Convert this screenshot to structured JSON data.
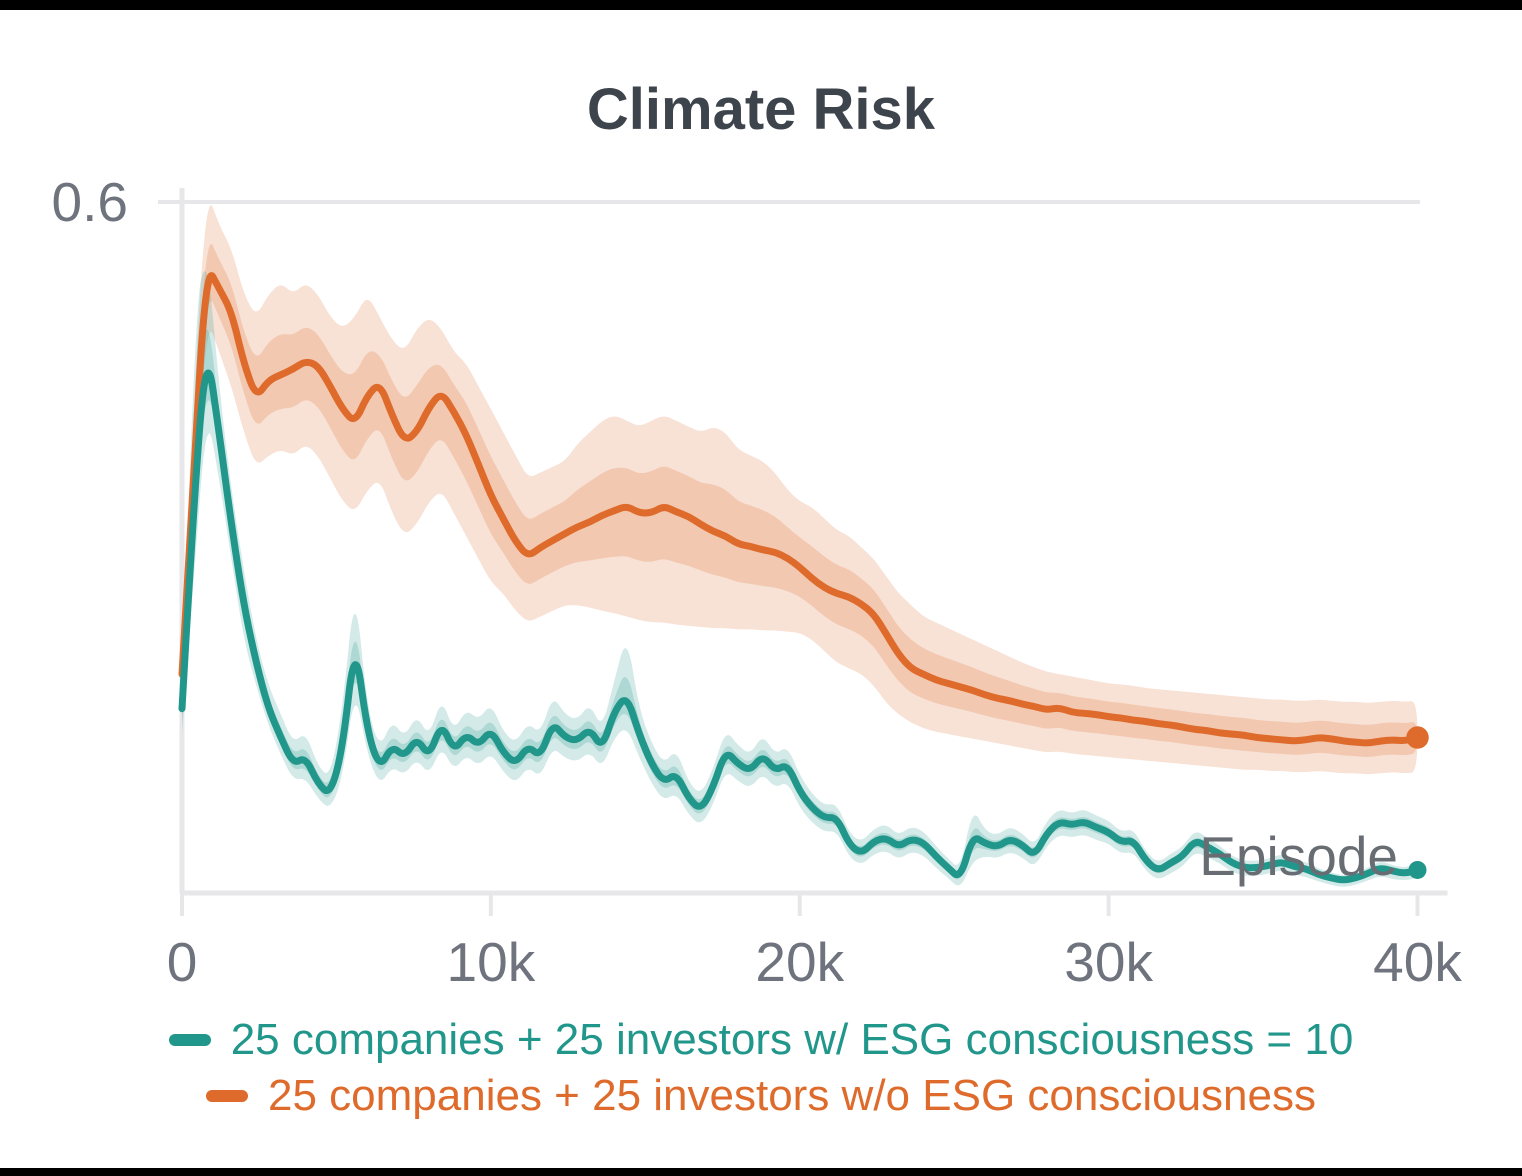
{
  "title": "Climate Risk",
  "axes": {
    "y_tick_label": "0.6",
    "x_axis_label": "Episode"
  },
  "colors": {
    "title_text": "#3d444c",
    "axis_line": "#e7e7e9",
    "tick_text": "#6e737d",
    "episode_text": "#686d74",
    "teal": "#21968a",
    "orange": "#de6b2b",
    "frame_bar": "#000000"
  },
  "legend": {
    "items": [
      {
        "label": "25 companies + 25 investors w/ ESG consciousness = 10",
        "color": "#21968a"
      },
      {
        "label": "25 companies + 25 investors w/o ESG consciousness",
        "color": "#de6b2b"
      }
    ]
  },
  "chart_data": {
    "type": "line",
    "title": "Climate Risk",
    "xlabel": "Episode",
    "ylabel": "",
    "xlim": [
      0,
      40000
    ],
    "ylim": [
      0,
      0.6
    ],
    "y_tick_label": "0.6",
    "y_ticks": [
      0.6
    ],
    "x_ticks": [
      0,
      10000,
      20000,
      30000,
      40000
    ],
    "x_tick_labels": [
      "0",
      "10k",
      "20k",
      "30k",
      "40k"
    ],
    "grid": "top-line-only",
    "legend_position": "bottom",
    "x_thousands": [
      0,
      0.4,
      0.8,
      1.2,
      1.6,
      2,
      2.4,
      2.8,
      3.2,
      3.6,
      4,
      4.4,
      4.8,
      5.2,
      5.6,
      6,
      6.4,
      6.8,
      7.2,
      7.6,
      8,
      8.4,
      8.8,
      9.2,
      9.6,
      10,
      10.4,
      10.8,
      11.2,
      11.6,
      12,
      12.4,
      12.8,
      13.2,
      13.6,
      14,
      14.4,
      14.8,
      15.2,
      15.6,
      16,
      16.4,
      16.8,
      17.2,
      17.6,
      18,
      18.4,
      18.8,
      19.2,
      19.6,
      20,
      20.4,
      20.8,
      21.2,
      21.6,
      22,
      22.4,
      22.8,
      23.2,
      23.6,
      24,
      24.4,
      24.8,
      25.2,
      25.6,
      26,
      26.4,
      26.8,
      27.2,
      27.6,
      28,
      28.4,
      28.8,
      29.2,
      29.6,
      30,
      30.4,
      30.8,
      31.2,
      31.6,
      32,
      32.4,
      32.8,
      33.2,
      33.6,
      34,
      34.4,
      34.8,
      35.2,
      35.6,
      36,
      36.4,
      36.8,
      37.2,
      37.6,
      38,
      38.4,
      38.8,
      39.2,
      39.6,
      40
    ],
    "series": [
      {
        "name": "25 companies + 25 investors w/ ESG consciousness = 10",
        "color": "#21968a",
        "values": [
          0.16,
          0.35,
          0.475,
          0.4,
          0.32,
          0.25,
          0.2,
          0.16,
          0.135,
          0.112,
          0.118,
          0.095,
          0.085,
          0.125,
          0.22,
          0.14,
          0.108,
          0.128,
          0.118,
          0.135,
          0.118,
          0.148,
          0.123,
          0.138,
          0.128,
          0.142,
          0.122,
          0.112,
          0.128,
          0.118,
          0.148,
          0.135,
          0.132,
          0.143,
          0.125,
          0.158,
          0.172,
          0.138,
          0.112,
          0.096,
          0.104,
          0.082,
          0.072,
          0.092,
          0.124,
          0.112,
          0.106,
          0.12,
          0.106,
          0.112,
          0.088,
          0.074,
          0.065,
          0.066,
          0.042,
          0.034,
          0.045,
          0.048,
          0.04,
          0.047,
          0.044,
          0.032,
          0.022,
          0.012,
          0.05,
          0.043,
          0.04,
          0.047,
          0.042,
          0.032,
          0.052,
          0.062,
          0.059,
          0.062,
          0.057,
          0.053,
          0.044,
          0.046,
          0.028,
          0.019,
          0.026,
          0.032,
          0.046,
          0.04,
          0.034,
          0.026,
          0.022,
          0.022,
          0.024,
          0.027,
          0.023,
          0.021,
          0.016,
          0.013,
          0.011,
          0.013,
          0.017,
          0.022,
          0.019,
          0.017,
          0.02
        ],
        "band_hi": [
          0.18,
          0.5,
          0.56,
          0.44,
          0.35,
          0.28,
          0.22,
          0.18,
          0.155,
          0.13,
          0.14,
          0.11,
          0.1,
          0.16,
          0.27,
          0.16,
          0.125,
          0.15,
          0.135,
          0.155,
          0.135,
          0.17,
          0.14,
          0.16,
          0.15,
          0.165,
          0.14,
          0.13,
          0.148,
          0.138,
          0.172,
          0.155,
          0.15,
          0.165,
          0.142,
          0.185,
          0.225,
          0.16,
          0.13,
          0.112,
          0.125,
          0.096,
          0.085,
          0.108,
          0.142,
          0.128,
          0.12,
          0.138,
          0.12,
          0.128,
          0.102,
          0.086,
          0.076,
          0.078,
          0.052,
          0.044,
          0.056,
          0.06,
          0.05,
          0.058,
          0.054,
          0.041,
          0.03,
          0.02,
          0.075,
          0.054,
          0.05,
          0.058,
          0.052,
          0.041,
          0.063,
          0.073,
          0.069,
          0.073,
          0.067,
          0.063,
          0.053,
          0.056,
          0.036,
          0.026,
          0.034,
          0.04,
          0.055,
          0.048,
          0.041,
          0.032,
          0.028,
          0.028,
          0.03,
          0.034,
          0.029,
          0.027,
          0.021,
          0.018,
          0.015,
          0.018,
          0.022,
          0.028,
          0.024,
          0.022,
          0.025
        ],
        "band_lo": [
          0.14,
          0.28,
          0.42,
          0.36,
          0.29,
          0.22,
          0.18,
          0.145,
          0.12,
          0.098,
          0.1,
          0.082,
          0.072,
          0.1,
          0.18,
          0.12,
          0.093,
          0.11,
          0.102,
          0.117,
          0.102,
          0.128,
          0.106,
          0.12,
          0.11,
          0.122,
          0.105,
          0.095,
          0.11,
          0.1,
          0.127,
          0.117,
          0.114,
          0.123,
          0.108,
          0.135,
          0.145,
          0.118,
          0.095,
          0.08,
          0.087,
          0.068,
          0.058,
          0.077,
          0.107,
          0.097,
          0.091,
          0.104,
          0.091,
          0.097,
          0.074,
          0.061,
          0.053,
          0.054,
          0.031,
          0.024,
          0.034,
          0.037,
          0.029,
          0.036,
          0.033,
          0.022,
          0.013,
          0.003,
          0.028,
          0.032,
          0.03,
          0.036,
          0.031,
          0.022,
          0.041,
          0.051,
          0.048,
          0.051,
          0.046,
          0.043,
          0.034,
          0.036,
          0.019,
          0.011,
          0.017,
          0.023,
          0.036,
          0.031,
          0.026,
          0.018,
          0.015,
          0.015,
          0.017,
          0.02,
          0.016,
          0.014,
          0.01,
          0.007,
          0.005,
          0.007,
          0.011,
          0.015,
          0.012,
          0.011,
          0.013
        ],
        "end_value": 0.02
      },
      {
        "name": "25 companies + 25 investors w/o ESG consciousness",
        "color": "#de6b2b",
        "values": [
          0.19,
          0.38,
          0.545,
          0.525,
          0.505,
          0.46,
          0.43,
          0.445,
          0.45,
          0.455,
          0.462,
          0.458,
          0.44,
          0.42,
          0.408,
          0.432,
          0.443,
          0.415,
          0.392,
          0.4,
          0.422,
          0.435,
          0.418,
          0.398,
          0.372,
          0.345,
          0.325,
          0.305,
          0.292,
          0.3,
          0.306,
          0.312,
          0.318,
          0.322,
          0.328,
          0.332,
          0.336,
          0.33,
          0.33,
          0.336,
          0.331,
          0.327,
          0.32,
          0.314,
          0.31,
          0.303,
          0.301,
          0.298,
          0.296,
          0.291,
          0.283,
          0.273,
          0.265,
          0.26,
          0.257,
          0.251,
          0.242,
          0.225,
          0.207,
          0.195,
          0.19,
          0.185,
          0.182,
          0.179,
          0.176,
          0.172,
          0.169,
          0.167,
          0.164,
          0.162,
          0.159,
          0.161,
          0.157,
          0.156,
          0.155,
          0.153,
          0.152,
          0.15,
          0.149,
          0.147,
          0.146,
          0.144,
          0.142,
          0.141,
          0.139,
          0.138,
          0.137,
          0.135,
          0.134,
          0.133,
          0.132,
          0.133,
          0.135,
          0.134,
          0.132,
          0.131,
          0.13,
          0.132,
          0.133,
          0.132,
          0.135
        ],
        "band_hi": [
          0.19,
          0.44,
          0.61,
          0.58,
          0.56,
          0.52,
          0.5,
          0.52,
          0.53,
          0.52,
          0.53,
          0.52,
          0.5,
          0.49,
          0.5,
          0.52,
          0.5,
          0.48,
          0.47,
          0.49,
          0.5,
          0.49,
          0.47,
          0.46,
          0.44,
          0.42,
          0.4,
          0.38,
          0.36,
          0.365,
          0.37,
          0.375,
          0.39,
          0.4,
          0.41,
          0.415,
          0.41,
          0.405,
          0.41,
          0.415,
          0.41,
          0.405,
          0.4,
          0.405,
          0.4,
          0.385,
          0.38,
          0.375,
          0.365,
          0.35,
          0.34,
          0.335,
          0.325,
          0.315,
          0.31,
          0.3,
          0.29,
          0.275,
          0.26,
          0.25,
          0.24,
          0.235,
          0.23,
          0.225,
          0.22,
          0.215,
          0.21,
          0.205,
          0.2,
          0.196,
          0.192,
          0.19,
          0.188,
          0.186,
          0.184,
          0.182,
          0.181,
          0.18,
          0.178,
          0.177,
          0.176,
          0.175,
          0.174,
          0.173,
          0.172,
          0.171,
          0.17,
          0.169,
          0.168,
          0.168,
          0.167,
          0.167,
          0.168,
          0.167,
          0.166,
          0.166,
          0.165,
          0.166,
          0.167,
          0.166,
          0.167
        ],
        "band_lo": [
          0.19,
          0.33,
          0.5,
          0.47,
          0.44,
          0.4,
          0.37,
          0.38,
          0.385,
          0.38,
          0.39,
          0.38,
          0.36,
          0.34,
          0.33,
          0.35,
          0.36,
          0.33,
          0.31,
          0.32,
          0.34,
          0.35,
          0.33,
          0.31,
          0.29,
          0.27,
          0.26,
          0.245,
          0.235,
          0.24,
          0.245,
          0.25,
          0.25,
          0.248,
          0.245,
          0.243,
          0.24,
          0.237,
          0.235,
          0.235,
          0.233,
          0.232,
          0.231,
          0.23,
          0.23,
          0.229,
          0.229,
          0.228,
          0.228,
          0.227,
          0.226,
          0.22,
          0.21,
          0.2,
          0.195,
          0.19,
          0.18,
          0.165,
          0.155,
          0.148,
          0.143,
          0.14,
          0.138,
          0.136,
          0.134,
          0.132,
          0.13,
          0.128,
          0.126,
          0.124,
          0.122,
          0.123,
          0.121,
          0.12,
          0.119,
          0.118,
          0.117,
          0.116,
          0.115,
          0.114,
          0.113,
          0.112,
          0.111,
          0.11,
          0.109,
          0.108,
          0.107,
          0.107,
          0.106,
          0.106,
          0.105,
          0.105,
          0.106,
          0.105,
          0.104,
          0.104,
          0.103,
          0.104,
          0.105,
          0.104,
          0.105
        ],
        "end_value": 0.135
      }
    ]
  }
}
